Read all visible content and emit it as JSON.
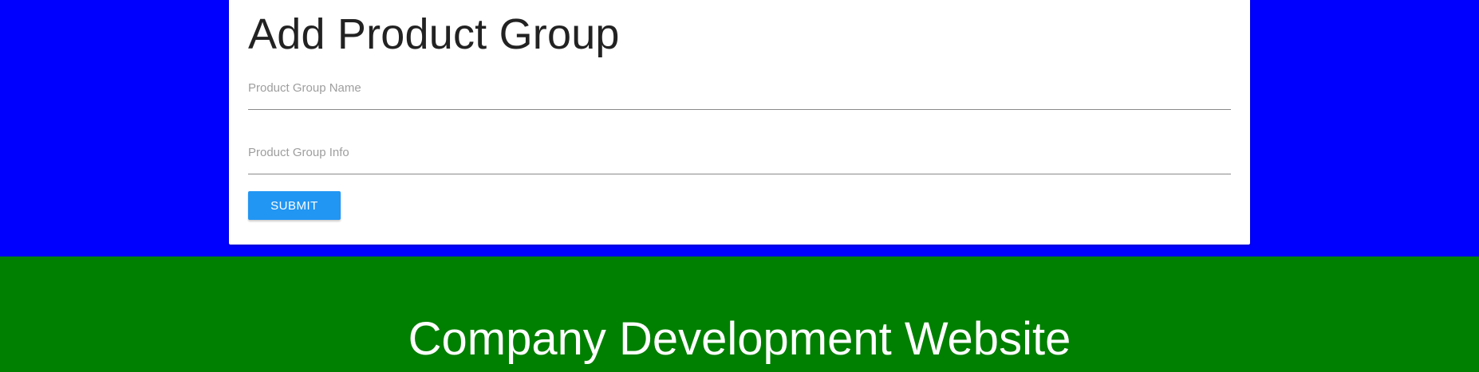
{
  "colors": {
    "top_background": "#0000ff",
    "card_background": "#ffffff",
    "button_background": "#2196f3",
    "footer_background": "#008000"
  },
  "form": {
    "title": "Add Product Group",
    "group_name_placeholder": "Product Group Name",
    "group_name_value": "",
    "group_info_placeholder": "Product Group Info",
    "group_info_value": "",
    "submit_label": "SUBMIT"
  },
  "footer": {
    "title": "Company Development Website"
  }
}
